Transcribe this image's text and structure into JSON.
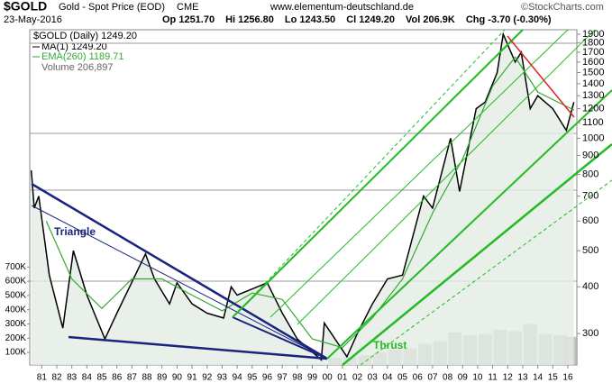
{
  "chart_data": {
    "type": "line",
    "symbol": "$GOLD",
    "title": "Gold - Spot Price (EOD)",
    "exchange": "CME",
    "website": "www.elementum-deutschland.de",
    "copyright": "©StockCharts.com",
    "date": "23-May-2016",
    "quote": [
      "Op 1251.70",
      "Hi 1256.80",
      "Lo 1243.50",
      "Cl 1249.20",
      "Vol 206.9K",
      "Chg -3.70 (-0.30%)"
    ],
    "legend_ma": "MA(1) 1249.20",
    "annotations": [
      "Triangle",
      "Thrust"
    ],
    "log_scale": true,
    "xlim": [
      1980.2,
      2016.6
    ],
    "ylim": [
      247,
      1953
    ],
    "xticks": [
      {
        "value": 1981,
        "label": "81"
      },
      {
        "value": 1982,
        "label": "82"
      },
      {
        "value": 1983,
        "label": "83"
      },
      {
        "value": 1984,
        "label": "84"
      },
      {
        "value": 1985,
        "label": "85"
      },
      {
        "value": 1986,
        "label": "86"
      },
      {
        "value": 1987,
        "label": "87"
      },
      {
        "value": 1988,
        "label": "88"
      },
      {
        "value": 1989,
        "label": "89"
      },
      {
        "value": 1990,
        "label": "90"
      },
      {
        "value": 1991,
        "label": "91"
      },
      {
        "value": 1992,
        "label": "92"
      },
      {
        "value": 1993,
        "label": "93"
      },
      {
        "value": 1994,
        "label": "94"
      },
      {
        "value": 1995,
        "label": "95"
      },
      {
        "value": 1996,
        "label": "96"
      },
      {
        "value": 1997,
        "label": "97"
      },
      {
        "value": 1998,
        "label": "98"
      },
      {
        "value": 1999,
        "label": "99"
      },
      {
        "value": 2000,
        "label": "00"
      },
      {
        "value": 2001,
        "label": "01"
      },
      {
        "value": 2002,
        "label": "02"
      },
      {
        "value": 2003,
        "label": "03"
      },
      {
        "value": 2004,
        "label": "04"
      },
      {
        "value": 2005,
        "label": "05"
      },
      {
        "value": 2006,
        "label": "06"
      },
      {
        "value": 2007,
        "label": "07"
      },
      {
        "value": 2008,
        "label": "08"
      },
      {
        "value": 2009,
        "label": "09"
      },
      {
        "value": 2010,
        "label": "10"
      },
      {
        "value": 2011,
        "label": "11"
      },
      {
        "value": 2012,
        "label": "12"
      },
      {
        "value": 2013,
        "label": "13"
      },
      {
        "value": 2014,
        "label": "14"
      },
      {
        "value": 2015,
        "label": "15"
      },
      {
        "value": 2016,
        "label": "16"
      }
    ],
    "yticks": [
      300,
      400,
      500,
      600,
      700,
      800,
      900,
      1000,
      1100,
      1200,
      1300,
      1400,
      1500,
      1600,
      1700,
      1800,
      1900
    ],
    "series": [
      {
        "name": "$GOLD (Daily) 1249.20",
        "color": "#000000",
        "x": [
          1980.3,
          1980.5,
          1980.8,
          1981.5,
          1982.4,
          1983.1,
          1984.0,
          1985.2,
          1986.0,
          1987.9,
          1988.5,
          1989.5,
          1990.0,
          1991.0,
          1992.0,
          1993.1,
          1993.6,
          1994.0,
          1996.0,
          1997.0,
          1998.0,
          1999.6,
          1999.8,
          2001.3,
          2002.0,
          2003.0,
          2004.0,
          2005.0,
          2006.4,
          2007.0,
          2008.2,
          2008.8,
          2009.9,
          2010.5,
          2011.3,
          2011.7,
          2012.5,
          2012.9,
          2013.5,
          2014.0,
          2015.0,
          2015.9,
          2016.4
        ],
        "values": [
          820,
          650,
          700,
          430,
          310,
          500,
          380,
          290,
          340,
          490,
          420,
          360,
          410,
          360,
          340,
          330,
          400,
          380,
          410,
          340,
          290,
          255,
          320,
          260,
          300,
          360,
          420,
          430,
          700,
          650,
          1000,
          720,
          1200,
          1250,
          1500,
          1900,
          1600,
          1700,
          1200,
          1300,
          1200,
          1050,
          1250
        ]
      },
      {
        "name": "EMA(260) 1189.71",
        "color": "#33aa33",
        "x": [
          1981.3,
          1983.0,
          1985.0,
          1987.0,
          1989.0,
          1991.0,
          1993.0,
          1995.0,
          1997.0,
          1999.0,
          2001.0,
          2003.0,
          2005.0,
          2007.0,
          2009.0,
          2011.0,
          2012.5,
          2014.0,
          2016.4
        ],
        "values": [
          600,
          420,
          350,
          420,
          420,
          380,
          345,
          385,
          370,
          290,
          275,
          330,
          420,
          630,
          880,
          1380,
          1650,
          1330,
          1190
        ]
      }
    ],
    "volume": {
      "name": "Volume 206,897",
      "color": "#aaaaaa",
      "xlim": [
        1980.2,
        2016.6
      ],
      "ylim": [
        12000,
        2366000
      ],
      "yticks": [
        {
          "value": 100000,
          "label": "100K"
        },
        {
          "value": 200000,
          "label": "200K"
        },
        {
          "value": 300000,
          "label": "300K"
        },
        {
          "value": 400000,
          "label": "400K"
        },
        {
          "value": 500000,
          "label": "500K"
        },
        {
          "value": 600000,
          "label": "600K"
        },
        {
          "value": 700000,
          "label": "700K"
        }
      ],
      "x": [
        2000.5,
        2001.5,
        2002.5,
        2003.5,
        2004.5,
        2005.5,
        2006.5,
        2007.5,
        2008.5,
        2009.5,
        2010.5,
        2011.5,
        2012.5,
        2013.5,
        2014.5,
        2015.5,
        2016.2
      ],
      "values": [
        60000,
        70000,
        80000,
        100000,
        120000,
        130000,
        160000,
        180000,
        240000,
        220000,
        230000,
        260000,
        250000,
        300000,
        230000,
        220000,
        210000
      ]
    }
  }
}
